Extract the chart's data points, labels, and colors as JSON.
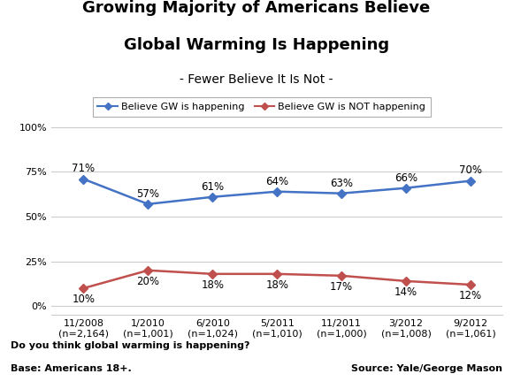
{
  "title_line1": "Growing Majority of Americans Believe",
  "title_line2": "Global Warming Is Happening",
  "subtitle": "- Fewer Believe It Is Not -",
  "x_labels": [
    "11/2008\n(n=2,164)",
    "1/2010\n(n=1,001)",
    "6/2010\n(n=1,024)",
    "5/2011\n(n=1,010)",
    "11/2011\n(n=1,000)",
    "3/2012\n(n=1,008)",
    "9/2012\n(n=1,061)"
  ],
  "blue_values": [
    71,
    57,
    61,
    64,
    63,
    66,
    70
  ],
  "red_values": [
    10,
    20,
    18,
    18,
    17,
    14,
    12
  ],
  "blue_labels": [
    "71%",
    "57%",
    "61%",
    "64%",
    "63%",
    "66%",
    "70%"
  ],
  "red_labels": [
    "10%",
    "20%",
    "18%",
    "18%",
    "17%",
    "14%",
    "12%"
  ],
  "blue_color": "#4472C4",
  "red_color": "#C0504D",
  "legend_blue": "Believe GW is happening",
  "legend_red": "Believe GW is NOT happening",
  "yticks": [
    0,
    25,
    50,
    75,
    100
  ],
  "ylim": [
    -5,
    108
  ],
  "footnote1": "Do you think global warming is happening?",
  "footnote2": "Base: Americans 18+.",
  "source": "Source: Yale/George Mason",
  "bg_color": "#FFFFFF",
  "grid_color": "#CCCCCC",
  "title_fontsize": 13,
  "subtitle_fontsize": 10,
  "tick_fontsize": 8,
  "label_fontsize": 8.5,
  "legend_fontsize": 8,
  "footnote_fontsize": 8,
  "source_fontsize": 8
}
